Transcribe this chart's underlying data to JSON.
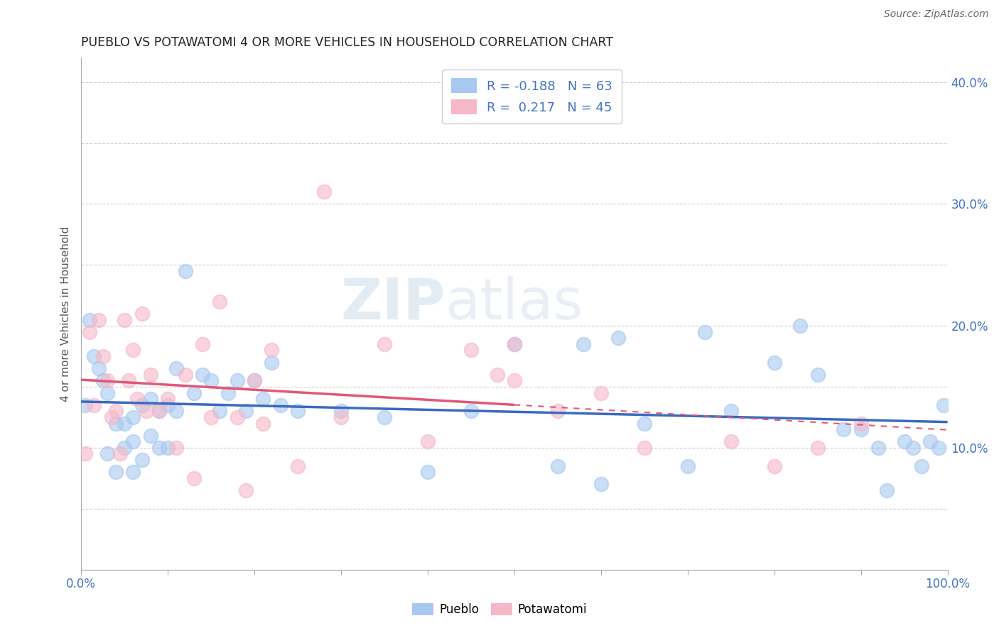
{
  "title": "PUEBLO VS POTAWATOMI 4 OR MORE VEHICLES IN HOUSEHOLD CORRELATION CHART",
  "source": "Source: ZipAtlas.com",
  "ylabel": "4 or more Vehicles in Household",
  "xlim": [
    0.0,
    1.0
  ],
  "ylim": [
    0.0,
    0.42
  ],
  "xticks": [
    0.0,
    0.1,
    0.2,
    0.3,
    0.4,
    0.5,
    0.6,
    0.7,
    0.8,
    0.9,
    1.0
  ],
  "yticks": [
    0.0,
    0.05,
    0.1,
    0.15,
    0.2,
    0.25,
    0.3,
    0.35,
    0.4
  ],
  "xtick_labels": [
    "0.0%",
    "",
    "",
    "",
    "",
    "",
    "",
    "",
    "",
    "",
    "100.0%"
  ],
  "ytick_labels_right": [
    "",
    "",
    "10.0%",
    "",
    "20.0%",
    "",
    "30.0%",
    "",
    "40.0%"
  ],
  "pueblo_R": -0.188,
  "pueblo_N": 63,
  "potawatomi_R": 0.217,
  "potawatomi_N": 45,
  "pueblo_color": "#a8c8f0",
  "potawatomi_color": "#f5b8c8",
  "pueblo_line_color": "#3a6abf",
  "potawatomi_line_color": "#e05878",
  "pueblo_x": [
    0.005,
    0.01,
    0.015,
    0.02,
    0.025,
    0.03,
    0.03,
    0.04,
    0.04,
    0.05,
    0.05,
    0.06,
    0.06,
    0.06,
    0.07,
    0.07,
    0.08,
    0.08,
    0.09,
    0.09,
    0.1,
    0.1,
    0.11,
    0.11,
    0.12,
    0.13,
    0.14,
    0.15,
    0.16,
    0.17,
    0.18,
    0.19,
    0.2,
    0.21,
    0.22,
    0.23,
    0.25,
    0.3,
    0.35,
    0.4,
    0.45,
    0.5,
    0.55,
    0.58,
    0.6,
    0.62,
    0.65,
    0.7,
    0.72,
    0.75,
    0.8,
    0.83,
    0.85,
    0.88,
    0.9,
    0.92,
    0.93,
    0.95,
    0.96,
    0.97,
    0.98,
    0.99,
    0.995
  ],
  "pueblo_y": [
    0.135,
    0.205,
    0.175,
    0.165,
    0.155,
    0.145,
    0.095,
    0.12,
    0.08,
    0.12,
    0.1,
    0.125,
    0.105,
    0.08,
    0.135,
    0.09,
    0.14,
    0.11,
    0.13,
    0.1,
    0.135,
    0.1,
    0.165,
    0.13,
    0.245,
    0.145,
    0.16,
    0.155,
    0.13,
    0.145,
    0.155,
    0.13,
    0.155,
    0.14,
    0.17,
    0.135,
    0.13,
    0.13,
    0.125,
    0.08,
    0.13,
    0.185,
    0.085,
    0.185,
    0.07,
    0.19,
    0.12,
    0.085,
    0.195,
    0.13,
    0.17,
    0.2,
    0.16,
    0.115,
    0.115,
    0.1,
    0.065,
    0.105,
    0.1,
    0.085,
    0.105,
    0.1,
    0.135
  ],
  "potawatomi_x": [
    0.005,
    0.01,
    0.015,
    0.02,
    0.025,
    0.03,
    0.035,
    0.04,
    0.045,
    0.05,
    0.055,
    0.06,
    0.065,
    0.07,
    0.075,
    0.08,
    0.09,
    0.1,
    0.11,
    0.12,
    0.13,
    0.14,
    0.15,
    0.16,
    0.18,
    0.19,
    0.2,
    0.21,
    0.22,
    0.25,
    0.28,
    0.3,
    0.35,
    0.4,
    0.45,
    0.48,
    0.5,
    0.55,
    0.6,
    0.65,
    0.5,
    0.75,
    0.8,
    0.85,
    0.9
  ],
  "potawatomi_y": [
    0.095,
    0.195,
    0.135,
    0.205,
    0.175,
    0.155,
    0.125,
    0.13,
    0.095,
    0.205,
    0.155,
    0.18,
    0.14,
    0.21,
    0.13,
    0.16,
    0.13,
    0.14,
    0.1,
    0.16,
    0.075,
    0.185,
    0.125,
    0.22,
    0.125,
    0.065,
    0.155,
    0.12,
    0.18,
    0.085,
    0.31,
    0.125,
    0.185,
    0.105,
    0.18,
    0.16,
    0.185,
    0.13,
    0.145,
    0.1,
    0.155,
    0.105,
    0.085,
    0.1,
    0.12
  ],
  "watermark_zip": "ZIP",
  "watermark_atlas": "atlas",
  "background_color": "#ffffff",
  "grid_color": "#cccccc",
  "title_color": "#222222",
  "tick_color": "#4472c4",
  "legend_R_color": "#4472c4",
  "legend_box_color": "#f0f0f0"
}
